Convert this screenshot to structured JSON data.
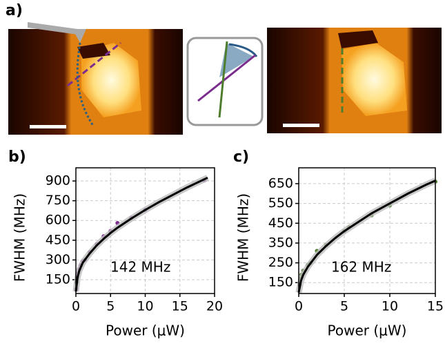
{
  "panel_a": {
    "label": "a)"
  },
  "chart_data": [
    {
      "type": "scatter",
      "panel_label": "b)",
      "xlabel": "Power (μW)",
      "ylabel": "FWHM (MHz)",
      "annotation": "142 MHz",
      "xlim": [
        0,
        20
      ],
      "ylim": [
        45,
        1000
      ],
      "xticks": [
        0,
        5,
        10,
        15,
        20
      ],
      "yticks": [
        150,
        300,
        450,
        600,
        750,
        900
      ],
      "grid": true,
      "series": [
        {
          "color": "#7b2d8e",
          "x": [
            0.05,
            0.1,
            0.2,
            0.3,
            0.5,
            0.7,
            1,
            1.3,
            2,
            3,
            4,
            5,
            6,
            8,
            10,
            18.5
          ],
          "values": [
            80,
            130,
            170,
            200,
            230,
            260,
            290,
            300,
            360,
            420,
            480,
            520,
            580,
            620,
            680,
            905
          ]
        },
        {
          "color": "#000000",
          "style": "line",
          "x": [
            0,
            0.25,
            0.5,
            1,
            2,
            3,
            4,
            5,
            6,
            8,
            10,
            12,
            14,
            16,
            18,
            19
          ],
          "values": [
            60,
            170,
            220,
            280,
            350,
            410,
            460,
            505,
            545,
            615,
            680,
            740,
            795,
            850,
            900,
            925
          ]
        }
      ]
    },
    {
      "type": "scatter",
      "panel_label": "c)",
      "xlabel": "Power (μW)",
      "ylabel": "FWHM (MHz)",
      "annotation": "162 MHz",
      "xlim": [
        0,
        15
      ],
      "ylim": [
        95,
        730
      ],
      "xticks": [
        0,
        5,
        10,
        15
      ],
      "yticks": [
        150,
        250,
        350,
        450,
        550,
        650
      ],
      "grid": true,
      "series": [
        {
          "color": "#4e7d2e",
          "x": [
            0.1,
            0.2,
            0.3,
            0.5,
            1,
            1.3,
            2,
            3,
            5,
            5.5,
            8,
            10,
            15
          ],
          "values": [
            140,
            170,
            190,
            210,
            240,
            250,
            310,
            340,
            410,
            430,
            490,
            540,
            660
          ]
        },
        {
          "color": "#000000",
          "style": "line",
          "x": [
            0,
            0.25,
            0.5,
            1,
            2,
            3,
            4,
            5,
            6,
            8,
            10,
            12,
            14,
            15
          ],
          "values": [
            100,
            160,
            190,
            230,
            290,
            335,
            375,
            410,
            440,
            500,
            550,
            600,
            645,
            665
          ]
        }
      ]
    }
  ]
}
